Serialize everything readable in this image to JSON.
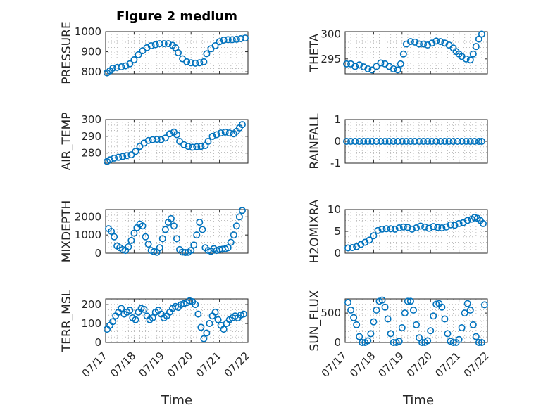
{
  "figure": {
    "title": "Figure 2 medium",
    "xlabel": "Time",
    "x_tick_labels": [
      "07/17",
      "07/18",
      "07/19",
      "07/20",
      "07/21",
      "07/22"
    ],
    "marker_color": "#0072BD"
  },
  "chart_data": [
    {
      "type": "scatter",
      "name": "PRESSURE",
      "ylabel": "PRESSURE",
      "yticks": [
        "800",
        "900",
        "1000"
      ],
      "ylim": [
        790,
        1000
      ],
      "xlim": [
        0,
        5
      ],
      "grid": true,
      "x": [
        0.05,
        0.15,
        0.25,
        0.4,
        0.55,
        0.7,
        0.85,
        1.0,
        1.15,
        1.3,
        1.45,
        1.6,
        1.75,
        1.9,
        2.05,
        2.2,
        2.35,
        2.45,
        2.55,
        2.7,
        2.85,
        3.0,
        3.15,
        3.3,
        3.45,
        3.55,
        3.7,
        3.85,
        4.0,
        4.15,
        4.3,
        4.45,
        4.6,
        4.75,
        4.9
      ],
      "y": [
        795,
        805,
        818,
        822,
        825,
        830,
        840,
        860,
        885,
        905,
        920,
        930,
        935,
        940,
        940,
        940,
        932,
        920,
        895,
        865,
        850,
        845,
        843,
        845,
        850,
        890,
        915,
        930,
        950,
        958,
        960,
        960,
        962,
        965,
        968
      ]
    },
    {
      "type": "scatter",
      "name": "THETA",
      "ylabel": "THETA",
      "yticks": [
        "295",
        "300"
      ],
      "ylim": [
        292,
        300.5
      ],
      "xlim": [
        0,
        5
      ],
      "grid": true,
      "x": [
        0.05,
        0.2,
        0.35,
        0.5,
        0.65,
        0.8,
        0.95,
        1.1,
        1.25,
        1.4,
        1.55,
        1.7,
        1.85,
        1.95,
        2.05,
        2.15,
        2.3,
        2.45,
        2.6,
        2.75,
        2.9,
        3.05,
        3.2,
        3.35,
        3.5,
        3.65,
        3.8,
        3.9,
        4.0,
        4.1,
        4.25,
        4.4,
        4.5,
        4.6,
        4.7,
        4.8
      ],
      "y": [
        294,
        294,
        293.5,
        293.8,
        293.4,
        293,
        292.8,
        293.5,
        294.2,
        294,
        293.5,
        293,
        292.8,
        294,
        296,
        298,
        298.5,
        298.4,
        298,
        298,
        297.8,
        298.2,
        298.6,
        298.5,
        298.2,
        297.8,
        297.2,
        296.5,
        296,
        295.5,
        295,
        294.8,
        296,
        297.5,
        299,
        300
      ]
    },
    {
      "type": "scatter",
      "name": "AIR_TEMP",
      "ylabel": "AIR_TEMP",
      "yticks": [
        "280",
        "290",
        "300"
      ],
      "ylim": [
        274,
        300
      ],
      "xlim": [
        0,
        5
      ],
      "grid": true,
      "x": [
        0.05,
        0.15,
        0.3,
        0.45,
        0.6,
        0.75,
        0.9,
        1.05,
        1.2,
        1.35,
        1.5,
        1.65,
        1.8,
        1.95,
        2.1,
        2.25,
        2.4,
        2.5,
        2.6,
        2.75,
        2.9,
        3.05,
        3.2,
        3.35,
        3.5,
        3.6,
        3.75,
        3.9,
        4.05,
        4.2,
        4.35,
        4.5,
        4.6,
        4.7,
        4.8
      ],
      "y": [
        275,
        276,
        277,
        277.5,
        278,
        278.5,
        279,
        281,
        284,
        286,
        287.5,
        288,
        288.2,
        288,
        289,
        291.5,
        292.5,
        291,
        287,
        285,
        284,
        283.5,
        283.8,
        284,
        284.5,
        287,
        290,
        291,
        292,
        292.5,
        292,
        291.5,
        293,
        295,
        297
      ]
    },
    {
      "type": "scatter",
      "name": "RAINFALL",
      "ylabel": "RAINFALL",
      "yticks": [
        "-1",
        "0",
        "1"
      ],
      "ylim": [
        -1,
        1
      ],
      "xlim": [
        0,
        5
      ],
      "grid": true,
      "x": [
        0.05,
        0.2,
        0.35,
        0.5,
        0.65,
        0.8,
        0.95,
        1.1,
        1.25,
        1.4,
        1.55,
        1.7,
        1.85,
        2.0,
        2.15,
        2.3,
        2.45,
        2.6,
        2.75,
        2.9,
        3.05,
        3.2,
        3.35,
        3.5,
        3.65,
        3.8,
        3.95,
        4.1,
        4.25,
        4.4,
        4.55,
        4.7,
        4.8
      ],
      "y": [
        0,
        0,
        0,
        0,
        0,
        0,
        0,
        0,
        0,
        0,
        0,
        0,
        0,
        0,
        0,
        0,
        0,
        0,
        0,
        0,
        0,
        0,
        0,
        0,
        0,
        0,
        0,
        0,
        0,
        0,
        0,
        0,
        0
      ]
    },
    {
      "type": "scatter",
      "name": "MIXDEPTH",
      "ylabel": "MIXDEPTH",
      "yticks": [
        "0",
        "1000",
        "2000"
      ],
      "ylim": [
        0,
        2400
      ],
      "xlim": [
        0,
        5
      ],
      "grid": true,
      "x": [
        0.1,
        0.2,
        0.3,
        0.4,
        0.5,
        0.6,
        0.7,
        0.8,
        0.9,
        1.0,
        1.1,
        1.2,
        1.3,
        1.4,
        1.5,
        1.6,
        1.7,
        1.8,
        1.9,
        2.0,
        2.1,
        2.2,
        2.3,
        2.4,
        2.5,
        2.6,
        2.7,
        2.8,
        2.9,
        3.0,
        3.1,
        3.2,
        3.3,
        3.4,
        3.5,
        3.6,
        3.7,
        3.8,
        3.9,
        4.0,
        4.1,
        4.2,
        4.3,
        4.4,
        4.5,
        4.6,
        4.7,
        4.8
      ],
      "y": [
        1350,
        1200,
        900,
        400,
        300,
        200,
        150,
        350,
        700,
        1100,
        1400,
        1600,
        1500,
        900,
        500,
        150,
        80,
        50,
        300,
        800,
        1300,
        1700,
        1900,
        1500,
        800,
        200,
        60,
        40,
        50,
        150,
        450,
        1000,
        1700,
        1300,
        300,
        150,
        100,
        250,
        150,
        200,
        220,
        240,
        300,
        600,
        1000,
        1500,
        2000,
        2350
      ]
    },
    {
      "type": "scatter",
      "name": "H2OMIXRA",
      "ylabel": "H2OMIXRA",
      "yticks": [
        "0",
        "5",
        "10"
      ],
      "ylim": [
        0,
        10
      ],
      "xlim": [
        0,
        5
      ],
      "grid": true,
      "x": [
        0.1,
        0.25,
        0.4,
        0.55,
        0.7,
        0.85,
        1.0,
        1.15,
        1.3,
        1.45,
        1.6,
        1.75,
        1.9,
        2.05,
        2.2,
        2.35,
        2.5,
        2.65,
        2.8,
        2.95,
        3.1,
        3.25,
        3.4,
        3.55,
        3.7,
        3.85,
        4.0,
        4.15,
        4.3,
        4.45,
        4.55,
        4.65,
        4.75,
        4.85
      ],
      "y": [
        1.2,
        1.3,
        1.5,
        2.0,
        2.5,
        3.0,
        4.0,
        5.2,
        5.5,
        5.6,
        5.6,
        5.5,
        5.8,
        6.0,
        5.9,
        5.5,
        5.8,
        6.2,
        6.0,
        5.7,
        6.1,
        5.9,
        5.8,
        6.0,
        6.5,
        6.4,
        6.8,
        7.0,
        7.5,
        7.8,
        8.2,
        8.0,
        7.5,
        6.8
      ]
    },
    {
      "type": "scatter",
      "name": "TERR_MSL",
      "ylabel": "TERR_MSL",
      "yticks": [
        "0",
        "100",
        "200"
      ],
      "ylim": [
        0,
        230
      ],
      "xlim": [
        0,
        5
      ],
      "grid": true,
      "x": [
        0.05,
        0.15,
        0.25,
        0.35,
        0.45,
        0.55,
        0.65,
        0.75,
        0.85,
        0.95,
        1.05,
        1.15,
        1.25,
        1.35,
        1.45,
        1.55,
        1.65,
        1.75,
        1.85,
        1.95,
        2.05,
        2.15,
        2.25,
        2.35,
        2.45,
        2.55,
        2.65,
        2.75,
        2.85,
        2.95,
        3.05,
        3.15,
        3.25,
        3.35,
        3.45,
        3.55,
        3.65,
        3.75,
        3.85,
        3.95,
        4.05,
        4.15,
        4.25,
        4.35,
        4.45,
        4.55,
        4.65,
        4.75,
        4.85
      ],
      "y": [
        70,
        90,
        110,
        140,
        160,
        180,
        150,
        160,
        170,
        130,
        120,
        160,
        180,
        175,
        140,
        120,
        130,
        160,
        170,
        150,
        130,
        140,
        160,
        180,
        190,
        185,
        200,
        205,
        210,
        220,
        215,
        200,
        150,
        80,
        20,
        50,
        100,
        140,
        160,
        120,
        90,
        70,
        100,
        120,
        130,
        140,
        130,
        145,
        150
      ]
    },
    {
      "type": "scatter",
      "name": "SUN_FLUX",
      "ylabel": "SUN_FLUX",
      "yticks": [
        "0",
        "500"
      ],
      "ylim": [
        0,
        740
      ],
      "xlim": [
        0,
        5
      ],
      "grid": true,
      "x": [
        0.1,
        0.2,
        0.3,
        0.4,
        0.5,
        0.6,
        0.7,
        0.8,
        0.9,
        1.0,
        1.1,
        1.2,
        1.3,
        1.4,
        1.5,
        1.6,
        1.7,
        1.8,
        1.9,
        2.0,
        2.1,
        2.2,
        2.3,
        2.4,
        2.5,
        2.6,
        2.7,
        2.8,
        2.9,
        3.0,
        3.1,
        3.2,
        3.3,
        3.4,
        3.5,
        3.6,
        3.7,
        3.8,
        3.9,
        4.0,
        4.1,
        4.2,
        4.3,
        4.4,
        4.5,
        4.6,
        4.7,
        4.8,
        4.9
      ],
      "y": [
        680,
        550,
        420,
        300,
        100,
        0,
        0,
        30,
        150,
        350,
        550,
        700,
        720,
        600,
        400,
        150,
        0,
        0,
        20,
        250,
        500,
        700,
        700,
        550,
        300,
        80,
        0,
        0,
        30,
        200,
        450,
        650,
        660,
        600,
        400,
        150,
        20,
        0,
        0,
        50,
        250,
        500,
        660,
        550,
        300,
        100,
        0,
        0,
        640
      ]
    }
  ]
}
